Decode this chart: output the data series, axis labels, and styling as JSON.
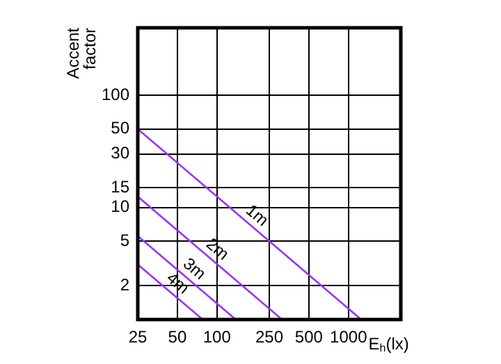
{
  "chart_data": {
    "type": "line",
    "xlabel": "E$_{h}$(lx)",
    "ylabel": "Accent factor",
    "xlim": [
      25,
      2500
    ],
    "ylim": [
      1,
      400
    ],
    "xticks": [
      25,
      50,
      100,
      250,
      500,
      1000
    ],
    "yticks": [
      2,
      5,
      10,
      15,
      30,
      50,
      100
    ],
    "log": "xy",
    "grid": true,
    "legend": false,
    "marker": "none",
    "line_style": "solid",
    "series": [
      {
        "name": "1m",
        "color": "#9933ff",
        "x": [
          25,
          1250
        ],
        "values": [
          50,
          1
        ]
      },
      {
        "name": "2m",
        "color": "#9933ff",
        "x": [
          25,
          312.5
        ],
        "values": [
          12.5,
          1
        ]
      },
      {
        "name": "3m",
        "color": "#9933ff",
        "x": [
          25,
          139
        ],
        "values": [
          5.56,
          1
        ]
      },
      {
        "name": "4m",
        "color": "#9933ff",
        "x": [
          25,
          78
        ],
        "values": [
          3.1,
          1
        ]
      }
    ]
  }
}
